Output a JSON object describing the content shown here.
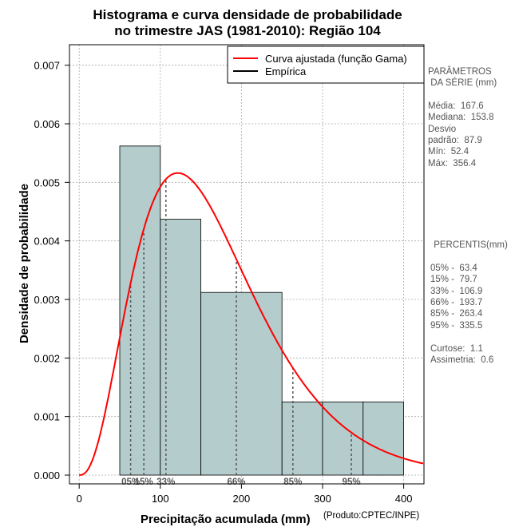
{
  "chart_data": {
    "type": "histogram",
    "title_line1": "Histograma e curva densidade de probabilidade",
    "title_line2": "no trimestre JAS (1981-2010): Região 104",
    "xlabel": "Precipitação acumulada (mm)",
    "ylabel": "Densidade de probabilidade",
    "credit": "(Produto:CPTEC/INPE)",
    "xlim": [
      -12,
      425
    ],
    "ylim": [
      -0.00015,
      0.00735
    ],
    "x_ticks": [
      0,
      100,
      200,
      300,
      400
    ],
    "x_tick_labels": [
      "0",
      "100",
      "200",
      "300",
      "400"
    ],
    "y_ticks": [
      0.0,
      0.001,
      0.002,
      0.003,
      0.004,
      0.005,
      0.006,
      0.007
    ],
    "y_tick_labels": [
      "0.000",
      "0.001",
      "0.002",
      "0.003",
      "0.004",
      "0.005",
      "0.006",
      "0.007"
    ],
    "grid": true,
    "bins": [
      {
        "x0": 50,
        "x1": 100,
        "density": 0.00562
      },
      {
        "x0": 100,
        "x1": 150,
        "density": 0.00437
      },
      {
        "x0": 150,
        "x1": 250,
        "density": 0.00312
      },
      {
        "x0": 250,
        "x1": 300,
        "density": 0.00125
      },
      {
        "x0": 300,
        "x1": 350,
        "density": 0.00125
      },
      {
        "x0": 350,
        "x1": 400,
        "density": 0.00125
      }
    ],
    "fitted_curve": {
      "name": "Curva ajustada (função Gama)",
      "color": "#ff0000",
      "shape": 3.63,
      "scale": 46.2
    },
    "empirical": {
      "name": "Empírica",
      "color": "#000000"
    },
    "bar_color": "#b4cccc",
    "legend_position": "top-right",
    "percentile_markers": [
      {
        "label": "05%",
        "value": 63.4
      },
      {
        "label": "15%",
        "value": 79.7
      },
      {
        "label": "33%",
        "value": 106.9
      },
      {
        "label": "66%",
        "value": 193.7
      },
      {
        "label": "85%",
        "value": 263.4
      },
      {
        "label": "95%",
        "value": 335.5
      }
    ]
  },
  "side_panel": {
    "params_header1": "PARÂMETROS",
    "params_header2": " DA SÉRIE (mm)",
    "media": "Média:  167.6",
    "mediana": "Mediana:  153.8",
    "desvio1": "Desvio",
    "desvio2": "padrão:  87.9",
    "min": "Mín:  52.4",
    "max": "Máx:  356.4",
    "pct_header": " PERCENTIS(mm)",
    "p05": "05% -  63.4",
    "p15": "15% -  79.7",
    "p33": "33% -  106.9",
    "p66": "66% -  193.7",
    "p85": "85% -  263.4",
    "p95": "95% -  335.5",
    "curtose": "Curtose:  1.1",
    "assimetria": "Assimetria:  0.6"
  }
}
